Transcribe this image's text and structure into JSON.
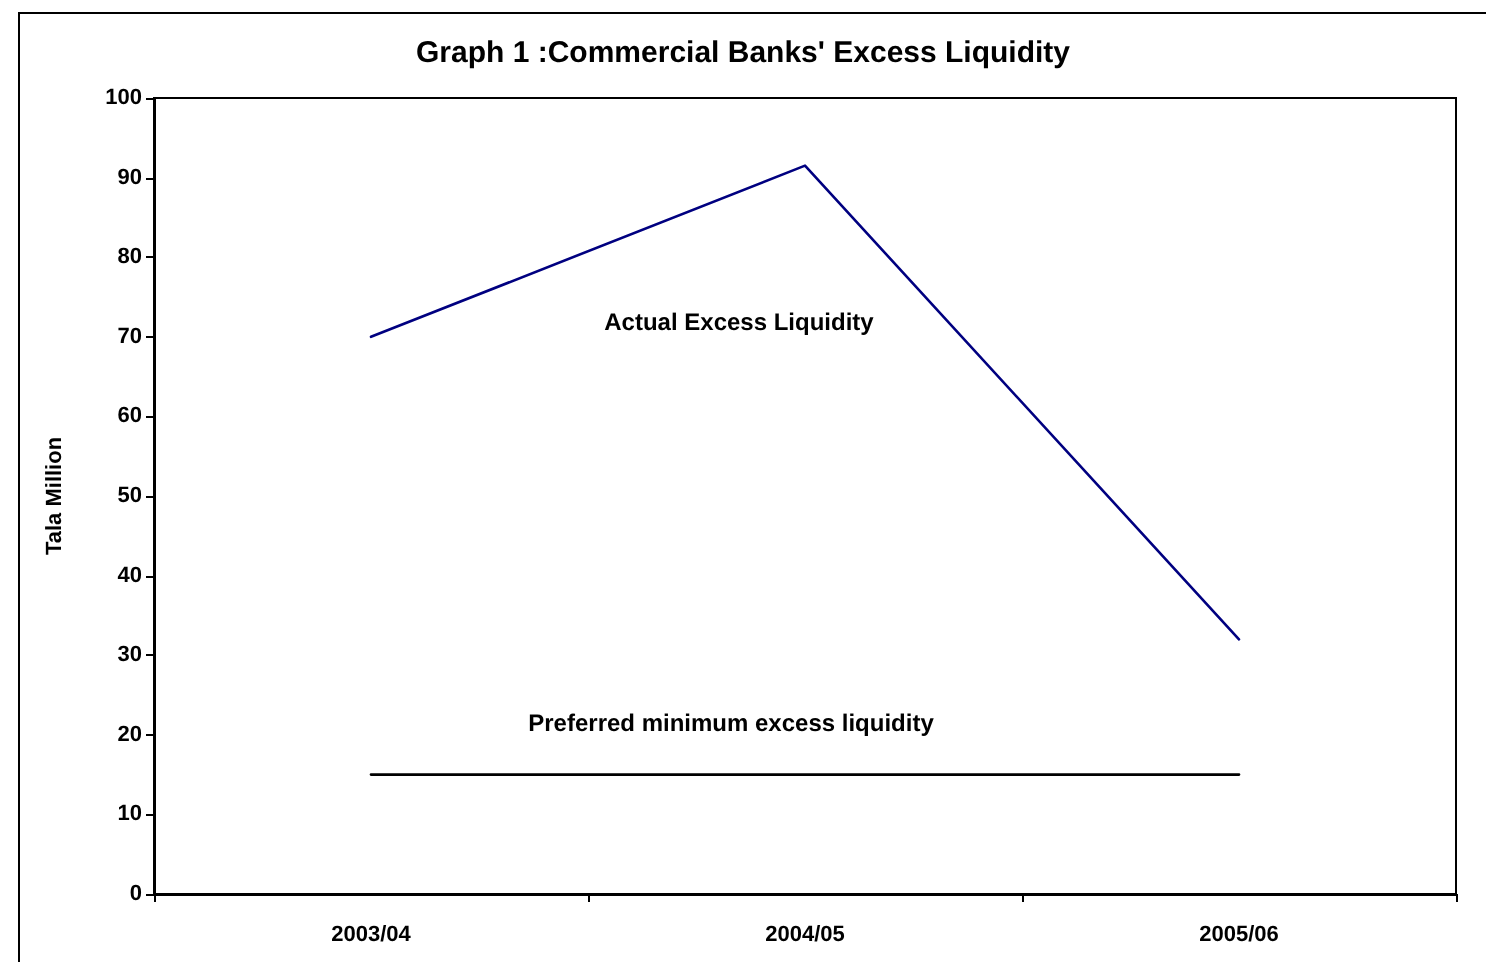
{
  "chart_data": {
    "type": "line",
    "title": "Graph 1 :Commercial Banks' Excess Liquidity",
    "ylabel": "Tala Million",
    "categories": [
      "2003/04",
      "2004/05",
      "2005/06"
    ],
    "series": [
      {
        "name": "Actual Excess Liquidity",
        "color": "#000080",
        "values": [
          70,
          91.5,
          32
        ]
      },
      {
        "name": "Preferred minimum excess liquidity",
        "color": "#000000",
        "values": [
          15,
          15,
          15
        ]
      }
    ],
    "ylim": [
      0,
      100
    ],
    "yticks": [
      0,
      10,
      20,
      30,
      40,
      50,
      60,
      70,
      80,
      90,
      100
    ],
    "marker": "none",
    "line_style": "solid"
  }
}
